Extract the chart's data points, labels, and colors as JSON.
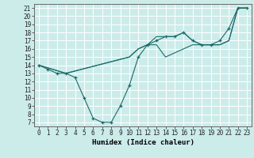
{
  "title": "",
  "xlabel": "Humidex (Indice chaleur)",
  "background_color": "#ccecea",
  "grid_color": "#ffffff",
  "line_color": "#1a6b6b",
  "xlim": [
    -0.5,
    23.5
  ],
  "ylim": [
    6.5,
    21.5
  ],
  "xticks": [
    0,
    1,
    2,
    3,
    4,
    5,
    6,
    7,
    8,
    9,
    10,
    11,
    12,
    13,
    14,
    15,
    16,
    17,
    18,
    19,
    20,
    21,
    22,
    23
  ],
  "yticks": [
    7,
    8,
    9,
    10,
    11,
    12,
    13,
    14,
    15,
    16,
    17,
    18,
    19,
    20,
    21
  ],
  "series": [
    {
      "x": [
        0,
        1,
        2,
        3,
        4,
        5,
        6,
        7,
        8,
        9,
        10,
        11,
        12,
        13,
        14,
        15,
        16,
        17,
        18,
        19,
        20,
        21,
        22,
        23
      ],
      "y": [
        14,
        13.5,
        13,
        13,
        12.5,
        10,
        7.5,
        7,
        7,
        9,
        11.5,
        15,
        16.5,
        17,
        17.5,
        17.5,
        18,
        17,
        16.5,
        16.5,
        17,
        18.5,
        21,
        21
      ],
      "has_markers": true
    },
    {
      "x": [
        0,
        3,
        10,
        11,
        12,
        13,
        14,
        15,
        16,
        17,
        18,
        19,
        20,
        21,
        22,
        23
      ],
      "y": [
        14,
        13,
        15,
        16,
        16.5,
        17.5,
        17.5,
        17.5,
        18,
        17,
        16.5,
        16.5,
        16.5,
        17,
        21,
        21
      ],
      "has_markers": false
    },
    {
      "x": [
        0,
        3,
        10,
        11,
        12,
        13,
        14,
        15,
        16,
        17,
        18,
        19,
        20,
        21,
        22,
        23
      ],
      "y": [
        14,
        13,
        15,
        16,
        16.5,
        16.5,
        15,
        15.5,
        16,
        16.5,
        16.5,
        16.5,
        16.5,
        17,
        21,
        21
      ],
      "has_markers": false
    }
  ],
  "tick_fontsize": 5.5,
  "xlabel_fontsize": 6.5,
  "xlabel_fontweight": "bold"
}
